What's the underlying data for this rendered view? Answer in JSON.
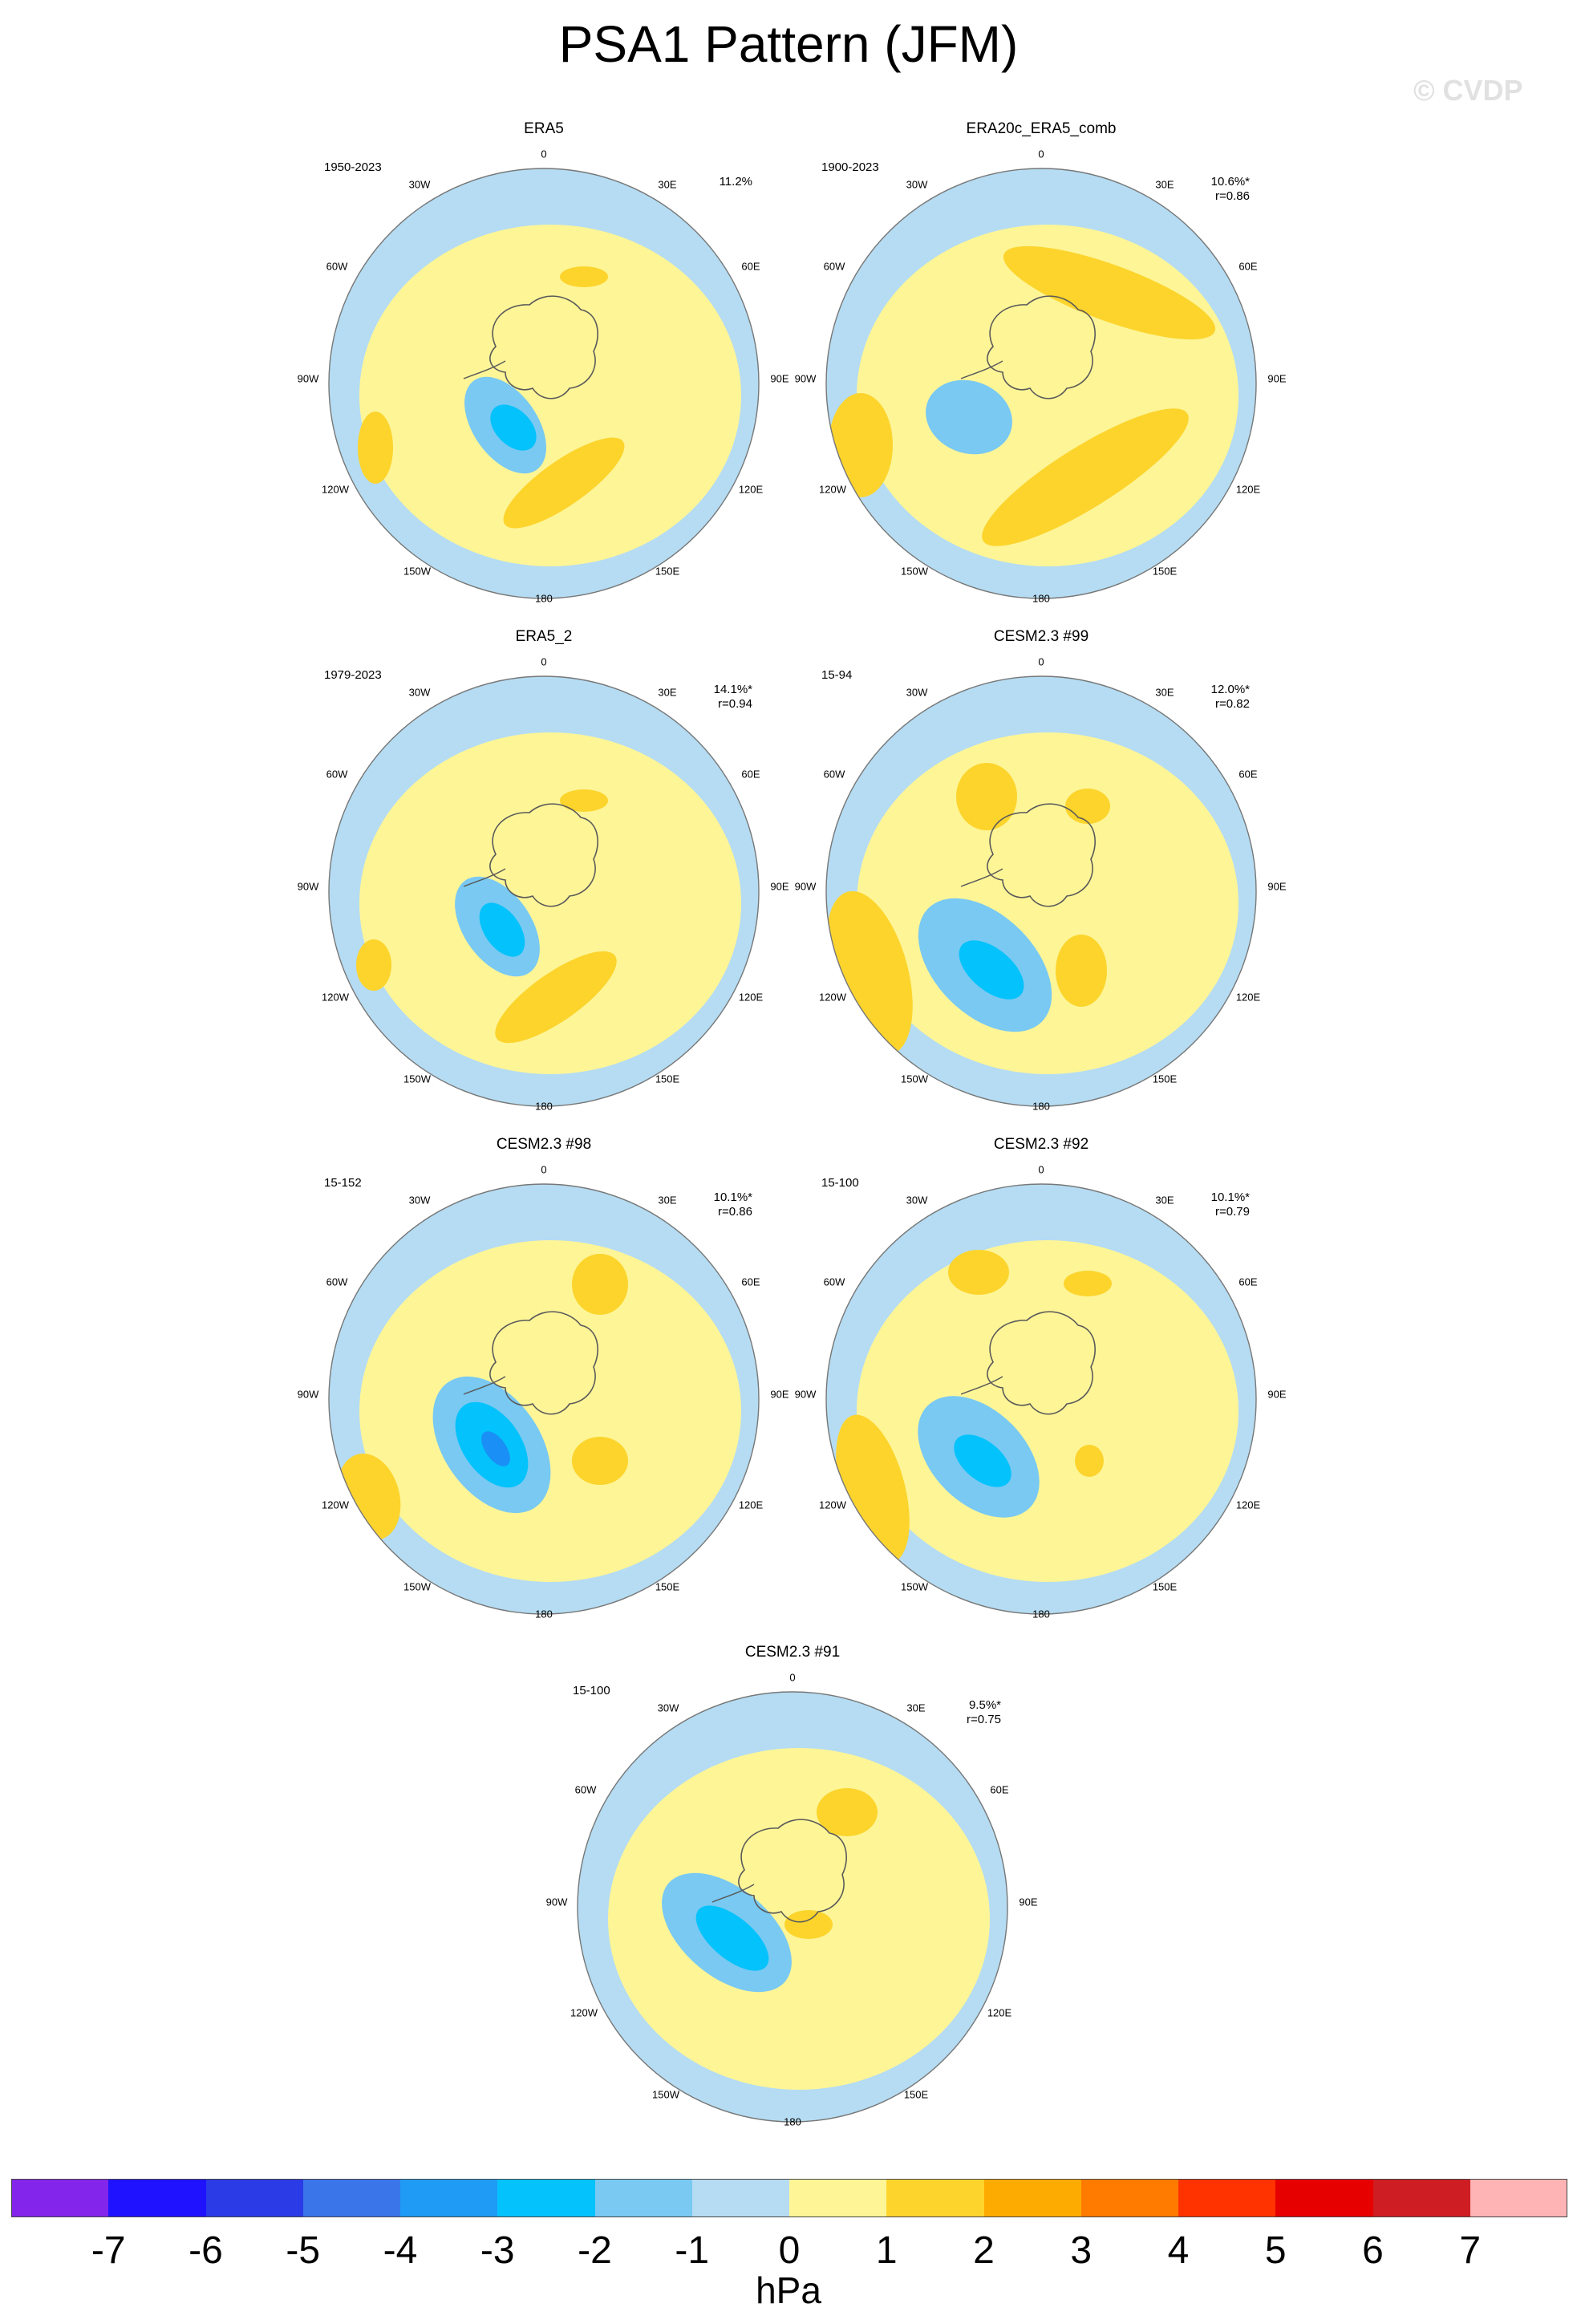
{
  "title": "PSA1 Pattern (JFM)",
  "watermark": "© CVDP",
  "colors": {
    "land": "#5a5a5a",
    "ocean_neg1": "#b5dcf2",
    "pos1": "#fef597",
    "pos2": "#fcd42c",
    "neg2": "#79c9f2",
    "neg3": "#04c2fb",
    "neg4": "#1a8ff5"
  },
  "map_labels": {
    "lat0": "0",
    "lon30w": "30W",
    "lon60w": "60W",
    "lon90w": "90W",
    "lon120w": "120W",
    "lon150w": "150W",
    "lon180": "180",
    "lon150e": "150E",
    "lon120e": "120E",
    "lon90e": "90E",
    "lon60e": "60E",
    "lon30e": "30E"
  },
  "panels": [
    {
      "id": "era5",
      "title": "ERA5",
      "years": "1950-2023",
      "pct": "11.2%",
      "r": ""
    },
    {
      "id": "era20c",
      "title": "ERA20c_ERA5_comb",
      "years": "1900-2023",
      "pct": "10.6%*",
      "r": "r=0.86"
    },
    {
      "id": "era5_2",
      "title": "ERA5_2",
      "years": "1979-2023",
      "pct": "14.1%*",
      "r": "r=0.94"
    },
    {
      "id": "cesm99",
      "title": "CESM2.3 #99",
      "years": "15-94",
      "pct": "12.0%*",
      "r": "r=0.82"
    },
    {
      "id": "cesm98",
      "title": "CESM2.3 #98",
      "years": "15-152",
      "pct": "10.1%*",
      "r": "r=0.86"
    },
    {
      "id": "cesm92",
      "title": "CESM2.3 #92",
      "years": "15-100",
      "pct": "10.1%*",
      "r": "r=0.79"
    },
    {
      "id": "cesm91",
      "title": "CESM2.3 #91",
      "years": "15-100",
      "pct": "9.5%*",
      "r": "r=0.75"
    }
  ],
  "colorbar": {
    "unit": "hPa",
    "ticks": [
      "-7",
      "-6",
      "-5",
      "-4",
      "-3",
      "-2",
      "-1",
      "0",
      "1",
      "2",
      "3",
      "4",
      "5",
      "6",
      "7"
    ],
    "colors": [
      "#8325ea",
      "#1f12ff",
      "#2b3be6",
      "#3a75ea",
      "#1f9af5",
      "#04c2fb",
      "#79c9f2",
      "#b5dcf2",
      "#fef597",
      "#fcd42c",
      "#fdab00",
      "#fe7b00",
      "#ff3300",
      "#e60000",
      "#cf1e23",
      "#feb4b4"
    ]
  }
}
